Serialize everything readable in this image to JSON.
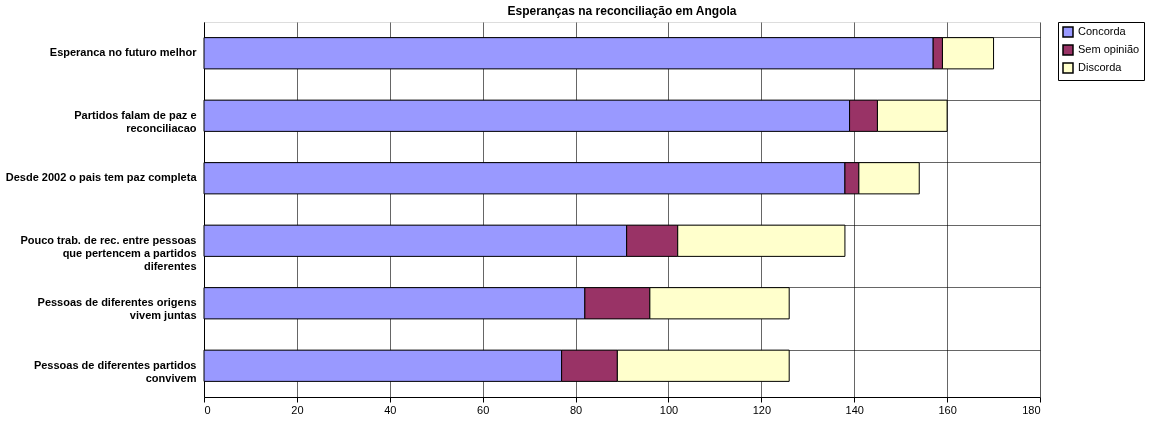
{
  "chart_data": {
    "type": "bar",
    "orientation": "horizontal",
    "stacked": true,
    "title": "Esperanças na reconciliação em Angola",
    "categories": [
      "Esperanca no futuro melhor",
      "Partidos falam de paz e reconciliacao",
      "Desde 2002 o pais tem paz completa",
      "Pouco trab. de rec. entre pessoas que pertencem a partidos diferentes",
      "Pessoas de diferentes origens vivem juntas",
      "Pessoas de diferentes partidos convivem"
    ],
    "series": [
      {
        "name": "Concorda",
        "color": "#9999ff",
        "values": [
          157,
          139,
          138,
          91,
          82,
          77
        ]
      },
      {
        "name": "Sem opinião",
        "color": "#993366",
        "values": [
          2,
          6,
          3,
          11,
          14,
          12
        ]
      },
      {
        "name": "Discorda",
        "color": "#ffffcc",
        "values": [
          11,
          15,
          13,
          36,
          30,
          37
        ]
      }
    ],
    "xlim": [
      0,
      180
    ],
    "xticks": [
      0,
      20,
      40,
      60,
      80,
      100,
      120,
      140,
      160,
      180
    ],
    "grid": true,
    "legend": "right"
  }
}
